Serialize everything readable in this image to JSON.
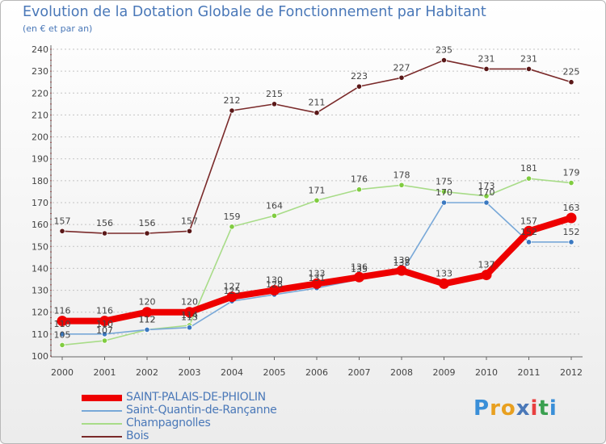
{
  "title": "Evolution de la Dotation Globale de Fonctionnement par Habitant",
  "subtitle": "(en € et par an)",
  "logo": {
    "text": "Proxiti",
    "letters": [
      {
        "ch": "P",
        "color": "#3a8fd8"
      },
      {
        "ch": "r",
        "color": "#e8a020"
      },
      {
        "ch": "o",
        "color": "#e8a020"
      },
      {
        "ch": "x",
        "color": "#4a78b8"
      },
      {
        "ch": "i",
        "color": "#e84040"
      },
      {
        "ch": "t",
        "color": "#3aa050"
      },
      {
        "ch": "i",
        "color": "#3a8fd8"
      }
    ]
  },
  "chart_data": {
    "type": "line",
    "title": "Evolution de la Dotation Globale de Fonctionnement par Habitant",
    "subtitle": "(en € et par an)",
    "xlabel": "",
    "ylabel": "",
    "categories": [
      "2000",
      "2001",
      "2002",
      "2003",
      "2004",
      "2005",
      "2006",
      "2007",
      "2008",
      "2009",
      "2010",
      "2011",
      "2012"
    ],
    "ylim": [
      100,
      240
    ],
    "yticks": [
      100,
      110,
      120,
      130,
      140,
      150,
      160,
      170,
      180,
      190,
      200,
      210,
      220,
      230,
      240
    ],
    "grid": "horizontal-dashed",
    "legend_position": "bottom-left",
    "series": [
      {
        "name": "Bois",
        "color": "#7a2a2a",
        "marker": "#5a1818",
        "width": "thin",
        "values": [
          157,
          156,
          156,
          157,
          212,
          215,
          211,
          223,
          227,
          235,
          231,
          231,
          225
        ]
      },
      {
        "name": "Champagnolles",
        "color": "#a8dc88",
        "marker": "#80cc40",
        "width": "thin",
        "values": [
          105,
          107,
          112,
          114,
          159,
          164,
          171,
          176,
          178,
          175,
          173,
          181,
          179
        ]
      },
      {
        "name": "Saint-Quantin-de-Rançanne",
        "color": "#78a8d8",
        "marker": "#3a78c0",
        "width": "thin",
        "values": [
          110,
          110,
          112,
          113,
          125,
          128,
          131,
          135,
          138,
          170,
          170,
          152,
          152
        ]
      },
      {
        "name": "SAINT-PALAIS-DE-PHIOLIN",
        "color": "#ee0000",
        "marker": "#ee0000",
        "width": "thick",
        "values": [
          116,
          116,
          120,
          120,
          127,
          130,
          133,
          136,
          139,
          133,
          137,
          157,
          163
        ]
      }
    ],
    "data_labels": {
      "Bois": [
        "157",
        "156",
        "156",
        "157",
        "212",
        "215",
        "211",
        "223",
        "227",
        "235",
        "231",
        "231",
        "225"
      ],
      "Champagnolles": [
        "105",
        "107",
        "112",
        "114",
        "159",
        "164",
        "171",
        "176",
        "178",
        "175",
        "173",
        "181",
        "179"
      ],
      "Saint-Quantin-de-Rançanne": [
        "110",
        "110",
        "112",
        "113",
        "125",
        "128",
        "131",
        "135",
        "138",
        "170",
        "170",
        "152",
        "152"
      ],
      "SAINT-PALAIS-DE-PHIOLIN": [
        "116",
        "116",
        "120",
        "120",
        "127",
        "130",
        "133",
        "136",
        "139",
        "133",
        "137",
        "157",
        "163"
      ]
    },
    "legend": [
      {
        "name": "SAINT-PALAIS-DE-PHIOLIN",
        "color": "#ee0000",
        "width": "thick"
      },
      {
        "name": "Saint-Quantin-de-Rançanne",
        "color": "#78a8d8",
        "width": "thin"
      },
      {
        "name": "Champagnolles",
        "color": "#a8dc88",
        "width": "thin"
      },
      {
        "name": "Bois",
        "color": "#7a2a2a",
        "width": "thin"
      }
    ]
  }
}
